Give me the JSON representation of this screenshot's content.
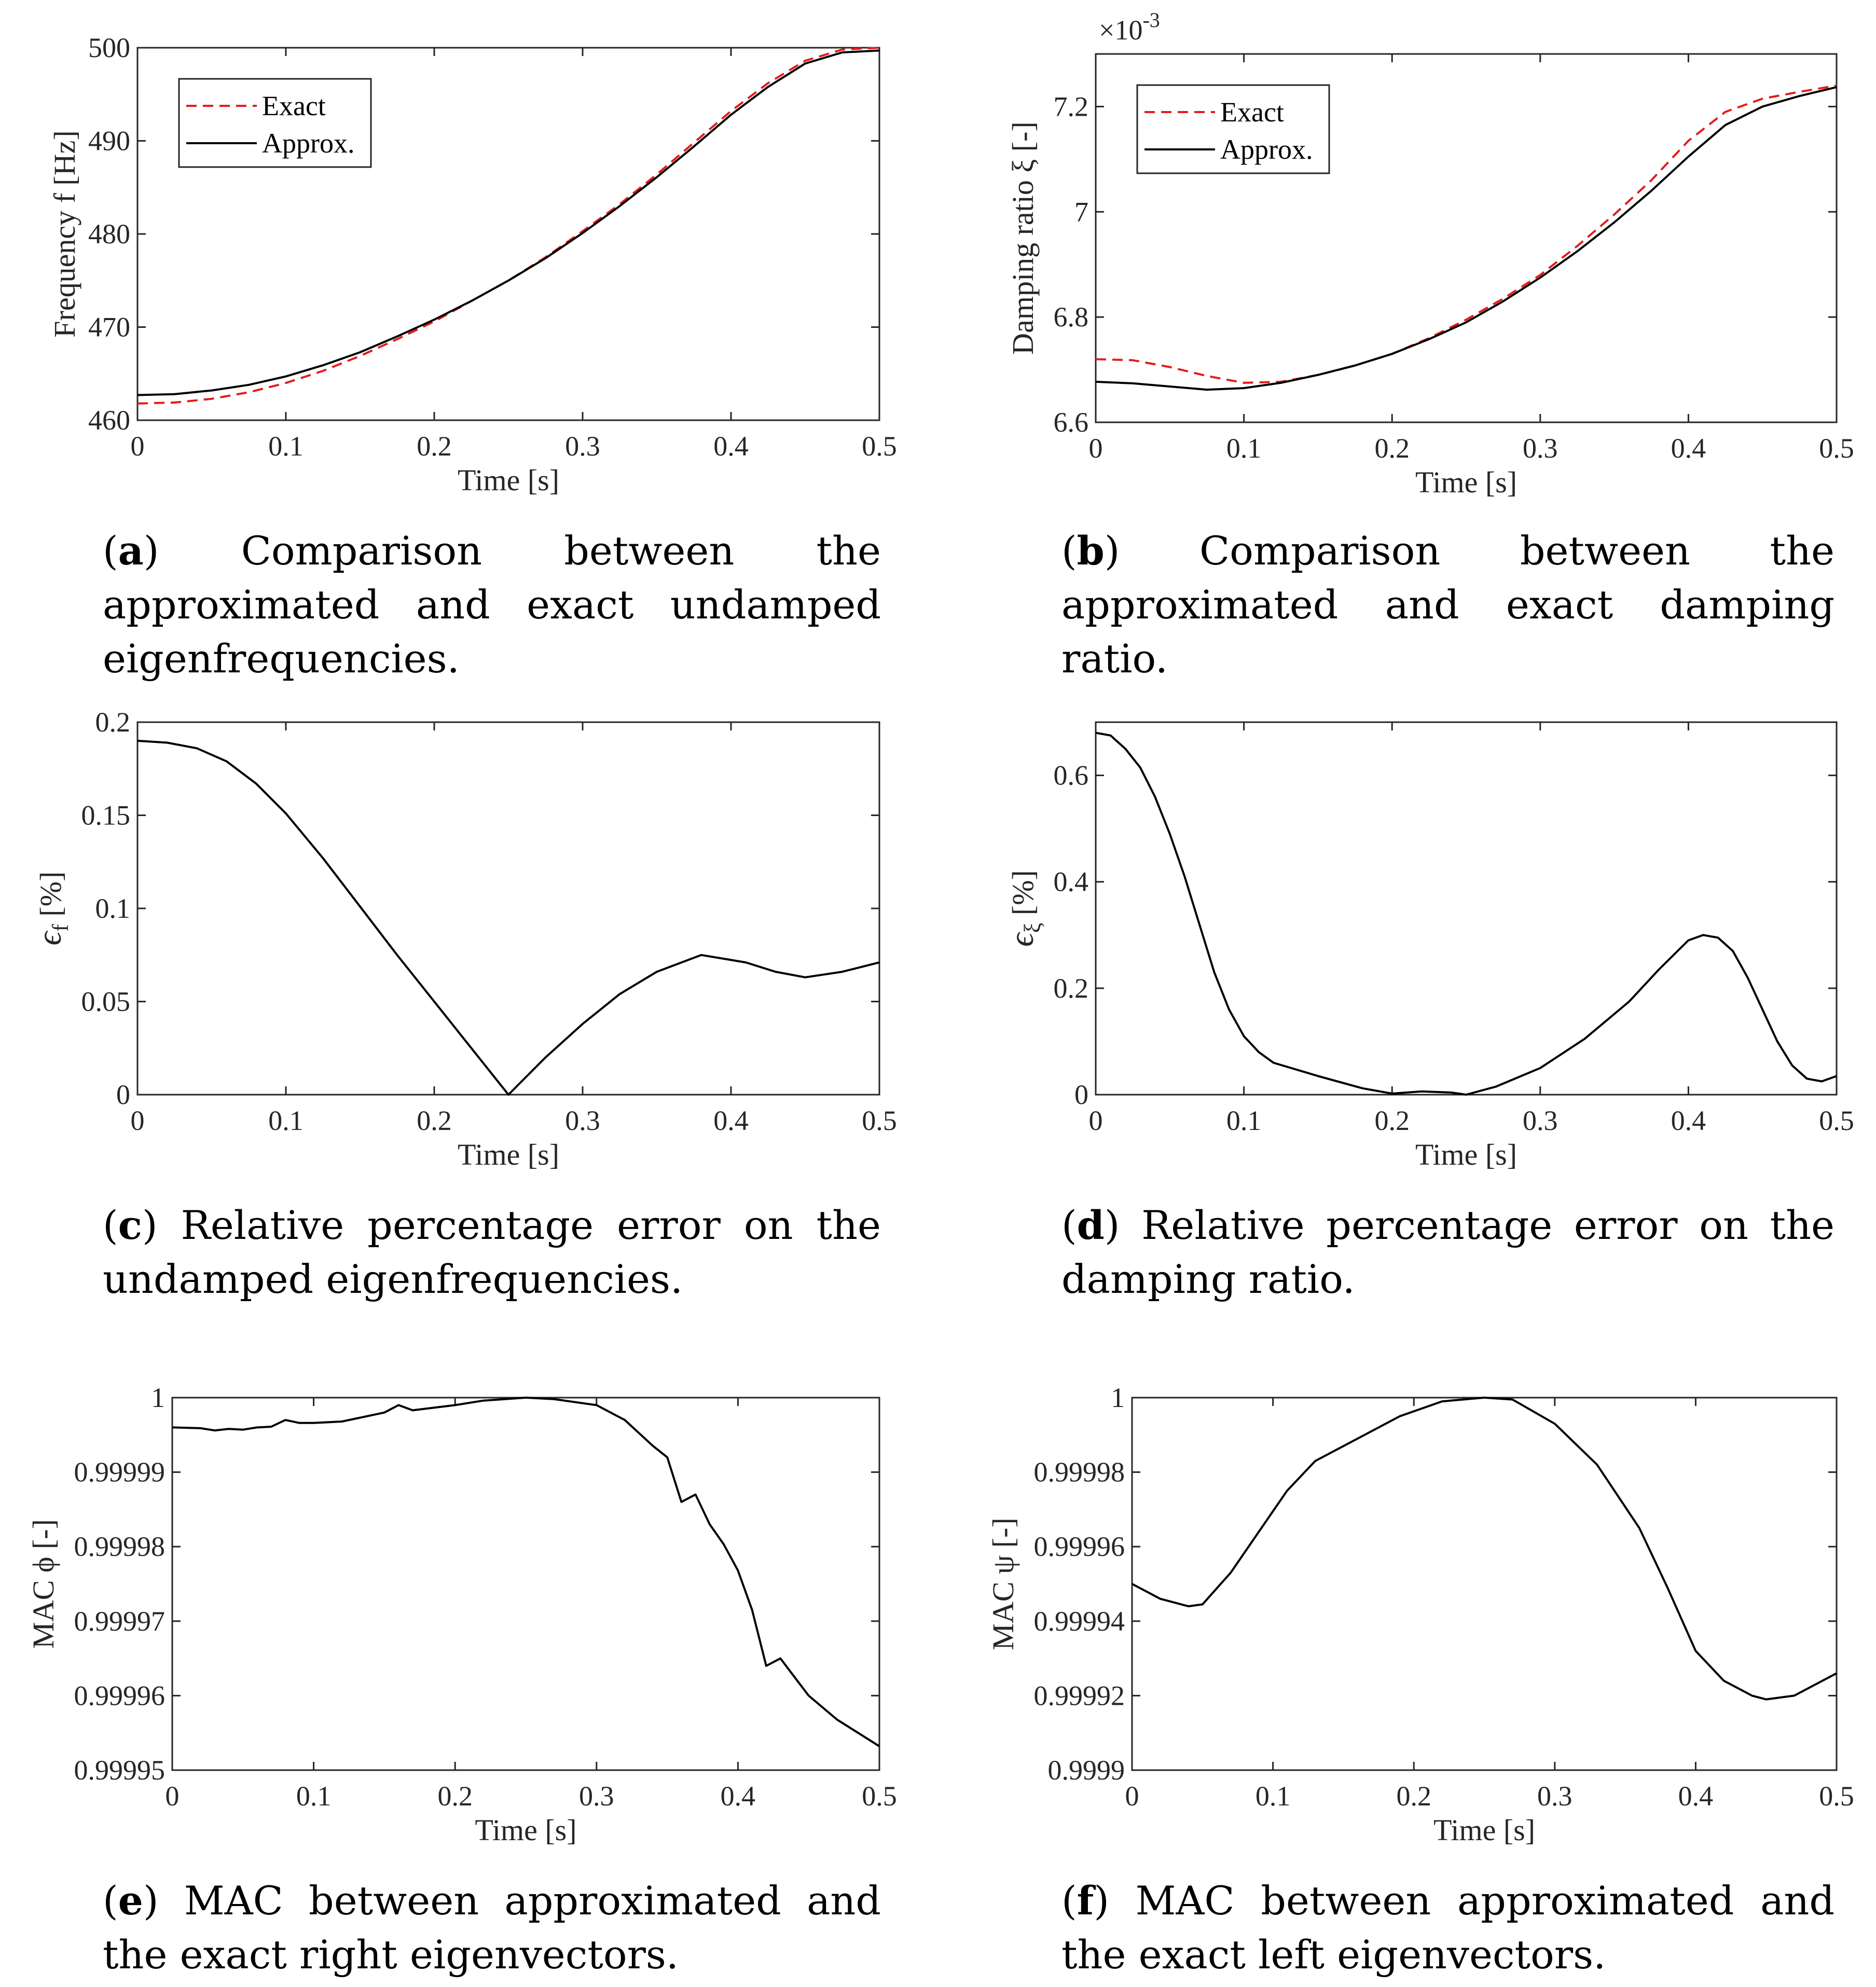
{
  "charts": [
    {
      "id": "a",
      "chart_data": {
        "type": "line",
        "xlabel": "Time [s]",
        "ylabel": "Frequency f [Hz]",
        "xlim": [
          0,
          0.5
        ],
        "ylim": [
          460,
          500
        ],
        "xticks": [
          0,
          0.1,
          0.2,
          0.3,
          0.4,
          0.5
        ],
        "xtick_labels": [
          "0",
          "0.1",
          "0.2",
          "0.3",
          "0.4",
          "0.5"
        ],
        "yticks": [
          460,
          470,
          480,
          490,
          500
        ],
        "ytick_labels": [
          "460",
          "470",
          "480",
          "490",
          "500"
        ],
        "legend": "top-left",
        "series": [
          {
            "name": "Exact",
            "style": "dashed",
            "color": "#e41a1c",
            "x": [
              0,
              0.025,
              0.05,
              0.075,
              0.1,
              0.125,
              0.15,
              0.175,
              0.2,
              0.225,
              0.25,
              0.275,
              0.3,
              0.325,
              0.35,
              0.375,
              0.4,
              0.425,
              0.45,
              0.475,
              0.5
            ],
            "y": [
              461.8,
              461.9,
              462.3,
              463.0,
              464.0,
              465.3,
              466.9,
              468.7,
              470.6,
              472.8,
              475.0,
              477.5,
              480.3,
              483.2,
              486.4,
              489.8,
              493.2,
              496.2,
              498.6,
              499.8,
              500.0
            ]
          },
          {
            "name": "Approx.",
            "style": "solid",
            "color": "#000000",
            "x": [
              0,
              0.025,
              0.05,
              0.075,
              0.1,
              0.125,
              0.15,
              0.175,
              0.2,
              0.225,
              0.25,
              0.275,
              0.3,
              0.325,
              0.35,
              0.375,
              0.4,
              0.425,
              0.45,
              0.475,
              0.5
            ],
            "y": [
              462.7,
              462.8,
              463.2,
              463.8,
              464.7,
              465.9,
              467.3,
              469.0,
              470.8,
              472.8,
              475.0,
              477.4,
              480.1,
              483.0,
              486.1,
              489.4,
              492.8,
              495.8,
              498.3,
              499.5,
              499.7
            ]
          }
        ]
      },
      "caption_label": "a",
      "caption_text": " Comparison between the approximated and exact undamped eigenfrequencies."
    },
    {
      "id": "b",
      "chart_data": {
        "type": "line",
        "xlabel": "Time [s]",
        "ylabel": "Damping ratio ξ [-]",
        "exponent": "×10",
        "exponent_power": "-3",
        "xlim": [
          0,
          0.5
        ],
        "ylim": [
          6.6,
          7.3
        ],
        "xticks": [
          0,
          0.1,
          0.2,
          0.3,
          0.4,
          0.5
        ],
        "xtick_labels": [
          "0",
          "0.1",
          "0.2",
          "0.3",
          "0.4",
          "0.5"
        ],
        "yticks": [
          6.6,
          6.8,
          7.0,
          7.2
        ],
        "ytick_labels": [
          "6.6",
          "6.8",
          "7",
          "7.2"
        ],
        "legend": "top-left",
        "series": [
          {
            "name": "Exact",
            "style": "dashed",
            "color": "#e41a1c",
            "x": [
              0,
              0.025,
              0.05,
              0.075,
              0.1,
              0.125,
              0.15,
              0.175,
              0.2,
              0.225,
              0.25,
              0.275,
              0.3,
              0.325,
              0.35,
              0.375,
              0.4,
              0.425,
              0.45,
              0.475,
              0.5
            ],
            "y": [
              6.72,
              6.718,
              6.705,
              6.688,
              6.675,
              6.677,
              6.69,
              6.708,
              6.73,
              6.76,
              6.795,
              6.835,
              6.88,
              6.935,
              6.995,
              7.06,
              7.135,
              7.19,
              7.215,
              7.228,
              7.24
            ]
          },
          {
            "name": "Approx.",
            "style": "solid",
            "color": "#000000",
            "x": [
              0,
              0.025,
              0.05,
              0.075,
              0.1,
              0.125,
              0.15,
              0.175,
              0.2,
              0.225,
              0.25,
              0.275,
              0.3,
              0.325,
              0.35,
              0.375,
              0.4,
              0.425,
              0.45,
              0.475,
              0.5
            ],
            "y": [
              6.677,
              6.674,
              6.668,
              6.662,
              6.665,
              6.675,
              6.69,
              6.708,
              6.73,
              6.758,
              6.79,
              6.83,
              6.875,
              6.925,
              6.98,
              7.04,
              7.105,
              7.165,
              7.2,
              7.22,
              7.237
            ]
          }
        ]
      },
      "caption_label": "b",
      "caption_text": " Comparison between the approximated and exact damping ratio."
    },
    {
      "id": "c",
      "chart_data": {
        "type": "line",
        "xlabel": "Time [s]",
        "ylabel": "ϵ_f [%]",
        "ylabel_main": "ϵ",
        "ylabel_sub": "f",
        "ylabel_rest": " [%]",
        "xlim": [
          0,
          0.5
        ],
        "ylim": [
          0,
          0.2
        ],
        "xticks": [
          0,
          0.1,
          0.2,
          0.3,
          0.4,
          0.5
        ],
        "xtick_labels": [
          "0",
          "0.1",
          "0.2",
          "0.3",
          "0.4",
          "0.5"
        ],
        "yticks": [
          0,
          0.05,
          0.1,
          0.15,
          0.2
        ],
        "ytick_labels": [
          "0",
          "0.05",
          "0.1",
          "0.15",
          "0.2"
        ],
        "series": [
          {
            "name": "",
            "style": "solid",
            "color": "#000000",
            "x": [
              0,
              0.02,
              0.04,
              0.06,
              0.08,
              0.1,
              0.125,
              0.15,
              0.175,
              0.2,
              0.225,
              0.25,
              0.275,
              0.3,
              0.325,
              0.35,
              0.38,
              0.41,
              0.43,
              0.45,
              0.475,
              0.5
            ],
            "y": [
              0.19,
              0.189,
              0.186,
              0.179,
              0.167,
              0.151,
              0.127,
              0.101,
              0.075,
              0.05,
              0.025,
              0.0,
              0.02,
              0.038,
              0.054,
              0.066,
              0.075,
              0.071,
              0.066,
              0.063,
              0.066,
              0.071
            ]
          }
        ]
      },
      "caption_label": "c",
      "caption_text": " Relative percentage error on the undamped eigenfrequencies."
    },
    {
      "id": "d",
      "chart_data": {
        "type": "line",
        "xlabel": "Time [s]",
        "ylabel": "ϵ_ξ [%]",
        "ylabel_main": "ϵ",
        "ylabel_sub": "ξ",
        "ylabel_rest": " [%]",
        "xlim": [
          0,
          0.5
        ],
        "ylim": [
          0,
          0.7
        ],
        "xticks": [
          0,
          0.1,
          0.2,
          0.3,
          0.4,
          0.5
        ],
        "xtick_labels": [
          "0",
          "0.1",
          "0.2",
          "0.3",
          "0.4",
          "0.5"
        ],
        "yticks": [
          0,
          0.2,
          0.4,
          0.6
        ],
        "ytick_labels": [
          "0",
          "0.2",
          "0.4",
          "0.6"
        ],
        "series": [
          {
            "name": "",
            "style": "solid",
            "color": "#000000",
            "x": [
              0,
              0.01,
              0.02,
              0.03,
              0.04,
              0.05,
              0.06,
              0.07,
              0.08,
              0.09,
              0.1,
              0.11,
              0.12,
              0.15,
              0.18,
              0.2,
              0.22,
              0.24,
              0.25,
              0.27,
              0.3,
              0.33,
              0.36,
              0.38,
              0.4,
              0.41,
              0.42,
              0.43,
              0.44,
              0.45,
              0.46,
              0.47,
              0.48,
              0.49,
              0.5
            ],
            "y": [
              0.68,
              0.675,
              0.65,
              0.615,
              0.56,
              0.49,
              0.41,
              0.32,
              0.23,
              0.16,
              0.11,
              0.08,
              0.06,
              0.035,
              0.012,
              0.002,
              0.006,
              0.004,
              0.0,
              0.015,
              0.05,
              0.105,
              0.175,
              0.235,
              0.29,
              0.3,
              0.295,
              0.27,
              0.22,
              0.16,
              0.1,
              0.055,
              0.03,
              0.025,
              0.035
            ]
          }
        ]
      },
      "caption_label": "d",
      "caption_text": " Relative percentage error on the damping ratio."
    },
    {
      "id": "e",
      "chart_data": {
        "type": "line",
        "xlabel": "Time [s]",
        "ylabel": "MAC ϕ [-]",
        "xlim": [
          0,
          0.5
        ],
        "ylim": [
          0.99995,
          1.0
        ],
        "xticks": [
          0,
          0.1,
          0.2,
          0.3,
          0.4,
          0.5
        ],
        "xtick_labels": [
          "0",
          "0.1",
          "0.2",
          "0.3",
          "0.4",
          "0.5"
        ],
        "yticks": [
          0.99995,
          0.99996,
          0.99997,
          0.99998,
          0.99999,
          1.0
        ],
        "ytick_labels": [
          "0.99995",
          "0.99996",
          "0.99997",
          "0.99998",
          "0.99999",
          "1"
        ],
        "series": [
          {
            "name": "",
            "style": "solid",
            "color": "#000000",
            "x": [
              0,
              0.02,
              0.03,
              0.04,
              0.05,
              0.06,
              0.07,
              0.08,
              0.09,
              0.1,
              0.12,
              0.15,
              0.16,
              0.17,
              0.2,
              0.22,
              0.25,
              0.27,
              0.3,
              0.32,
              0.34,
              0.35,
              0.36,
              0.37,
              0.38,
              0.39,
              0.4,
              0.41,
              0.42,
              0.43,
              0.44,
              0.45,
              0.47,
              0.5
            ],
            "y": [
              0.999996,
              0.9999959,
              0.9999956,
              0.9999958,
              0.9999957,
              0.999996,
              0.9999961,
              0.999997,
              0.9999966,
              0.9999966,
              0.9999968,
              0.999998,
              0.999999,
              0.9999983,
              0.999999,
              0.9999996,
              1.0,
              0.9999998,
              0.999999,
              0.999997,
              0.9999935,
              0.999992,
              0.999986,
              0.999987,
              0.999983,
              0.9999803,
              0.9999768,
              0.9999715,
              0.999964,
              0.999965,
              0.9999625,
              0.99996,
              0.9999568,
              0.9999532
            ]
          }
        ]
      },
      "caption_label": "e",
      "caption_text": " MAC between approximated and the exact right eigenvectors."
    },
    {
      "id": "f",
      "chart_data": {
        "type": "line",
        "xlabel": "Time [s]",
        "ylabel": "MAC ψ [-]",
        "xlim": [
          0,
          0.5
        ],
        "ylim": [
          0.9999,
          1.0
        ],
        "xticks": [
          0,
          0.1,
          0.2,
          0.3,
          0.4,
          0.5
        ],
        "xtick_labels": [
          "0",
          "0.1",
          "0.2",
          "0.3",
          "0.4",
          "0.5"
        ],
        "yticks": [
          0.9999,
          0.99992,
          0.99994,
          0.99996,
          0.99998,
          1.0
        ],
        "ytick_labels": [
          "0.9999",
          "0.99992",
          "0.99994",
          "0.99996",
          "0.99998",
          "1"
        ],
        "series": [
          {
            "name": "",
            "style": "solid",
            "color": "#000000",
            "x": [
              0,
              0.02,
              0.04,
              0.05,
              0.07,
              0.09,
              0.11,
              0.13,
              0.16,
              0.19,
              0.22,
              0.25,
              0.27,
              0.3,
              0.33,
              0.36,
              0.38,
              0.4,
              0.42,
              0.44,
              0.45,
              0.47,
              0.5
            ],
            "y": [
              0.99995,
              0.999946,
              0.999944,
              0.9999445,
              0.999953,
              0.999964,
              0.999975,
              0.999983,
              0.999989,
              0.999995,
              0.999999,
              1.0,
              0.9999995,
              0.999993,
              0.999982,
              0.999965,
              0.999949,
              0.999932,
              0.999924,
              0.99992,
              0.999919,
              0.99992,
              0.999926
            ]
          }
        ]
      },
      "caption_label": "f",
      "caption_text": " MAC between approximated and the exact left eigenvectors."
    }
  ]
}
